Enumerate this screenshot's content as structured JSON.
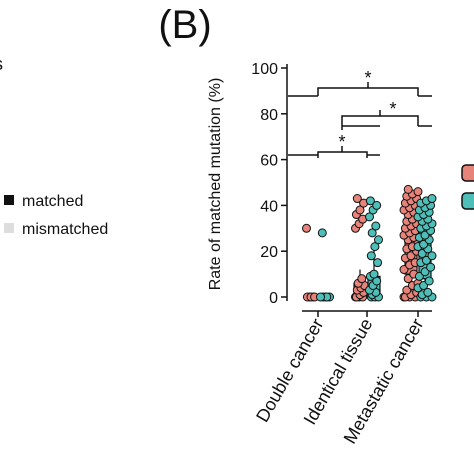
{
  "panel_label": "(B)",
  "fragment": "s",
  "other_legend": [
    "matched",
    "mismatched"
  ],
  "chart_data": {
    "type": "strip",
    "y_label": "Rate of matched mutation (%)",
    "categories": [
      "Double cancer",
      "Identical tissue",
      "Metastatic cancer"
    ],
    "ylim": [
      0,
      100
    ],
    "yticks": [
      0,
      20,
      40,
      60,
      80,
      100
    ],
    "annotations": [
      "*",
      "*",
      "*"
    ],
    "series": [
      {
        "color": "#e8837a",
        "values": [
          [
            30,
            0,
            0,
            0,
            0,
            0
          ],
          [
            0,
            0,
            0,
            0,
            1,
            2,
            3,
            4,
            5,
            6,
            8,
            30,
            32,
            34,
            36,
            38,
            41,
            43
          ],
          [
            0,
            0,
            0,
            0,
            1,
            2,
            3,
            5,
            6,
            8,
            10,
            12,
            14,
            15,
            17,
            18,
            20,
            21,
            22,
            24,
            25,
            26,
            27,
            28,
            29,
            30,
            31,
            32,
            33,
            34,
            35,
            36,
            37,
            38,
            39,
            40,
            41,
            42,
            43,
            44,
            45,
            46,
            47
          ]
        ],
        "boxes": [
          null,
          {
            "low": 0,
            "q1": 0,
            "median": 2,
            "q3": 6,
            "high": 12
          },
          {
            "low": 0,
            "q1": 10,
            "median": 25,
            "q3": 36,
            "high": 47
          }
        ]
      },
      {
        "color": "#4dbfb8",
        "values": [
          [
            28,
            0,
            0,
            0,
            0,
            0
          ],
          [
            0,
            0,
            0,
            1,
            2,
            3,
            5,
            7,
            9,
            10,
            15,
            18,
            22,
            25,
            28,
            31,
            35,
            38,
            40,
            42
          ],
          [
            0,
            0,
            0,
            1,
            2,
            4,
            5,
            7,
            9,
            11,
            13,
            15,
            16,
            18,
            19,
            21,
            22,
            23,
            25,
            26,
            27,
            29,
            30,
            31,
            32,
            33,
            34,
            35,
            36,
            37,
            38,
            39,
            40,
            41,
            42,
            43
          ]
        ],
        "boxes": [
          null,
          {
            "low": 0,
            "q1": 0,
            "median": 3,
            "q3": 9,
            "high": 22
          },
          {
            "low": 0,
            "q1": 8,
            "median": 22,
            "q3": 34,
            "high": 43
          }
        ]
      }
    ]
  }
}
